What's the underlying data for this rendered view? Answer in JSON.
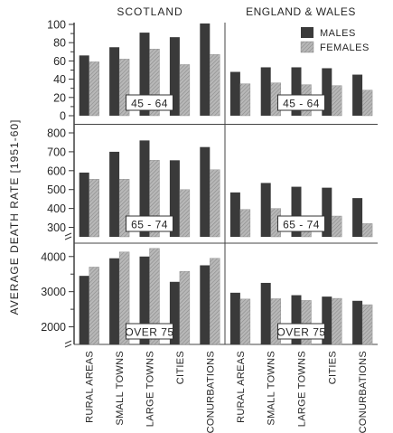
{
  "chart_data": {
    "type": "bar",
    "ylabel": "AVERAGE DEATH RATE [1951-60]",
    "columns": [
      "SCOTLAND",
      "ENGLAND & WALES"
    ],
    "categories": [
      "RURAL AREAS",
      "SMALL TOWNS",
      "LARGE TOWNS",
      "CITIES",
      "CONURBATIONS"
    ],
    "legend": [
      "MALES",
      "FEMALES"
    ],
    "colors": {
      "males": "#3a3a3a",
      "females": "#a9a9a9"
    },
    "rows": [
      {
        "label": "45 - 64",
        "ylim": [
          0,
          100
        ],
        "ticks": [
          0,
          10,
          20,
          30,
          40,
          50,
          60,
          70,
          80,
          90,
          100
        ],
        "tick_labels": [
          "0",
          "",
          "20",
          "",
          "40",
          "",
          "60",
          "",
          "80",
          "",
          "100"
        ],
        "panels": [
          {
            "males": [
              66,
              75,
              91,
              86,
              101
            ],
            "females": [
              59,
              62,
              73,
              56,
              67
            ]
          },
          {
            "males": [
              48,
              53,
              53,
              52,
              45
            ],
            "females": [
              35,
              36,
              34,
              33,
              28
            ]
          }
        ]
      },
      {
        "label": "65 - 74",
        "ylim": [
          250,
          800
        ],
        "ticks": [
          300,
          400,
          500,
          600,
          700,
          800
        ],
        "tick_labels": [
          "300",
          "400",
          "500",
          "600",
          "700",
          "800"
        ],
        "panels": [
          {
            "males": [
              590,
              700,
              760,
              655,
              725
            ],
            "females": [
              555,
              555,
              655,
              500,
              605
            ]
          },
          {
            "males": [
              485,
              535,
              515,
              510,
              455
            ],
            "females": [
              395,
              400,
              355,
              360,
              320
            ]
          }
        ]
      },
      {
        "label": "OVER 75",
        "ylim": [
          1500,
          4200
        ],
        "ticks": [
          2000,
          2500,
          3000,
          3500,
          4000
        ],
        "tick_labels": [
          "2000",
          "",
          "3000",
          "",
          "4000"
        ],
        "panels": [
          {
            "males": [
              3450,
              3950,
              4000,
              3280,
              3750
            ],
            "females": [
              3700,
              4130,
              4230,
              3580,
              3950
            ]
          },
          {
            "males": [
              2970,
              3250,
              2900,
              2860,
              2740
            ],
            "females": [
              2790,
              2800,
              2750,
              2810,
              2630
            ]
          }
        ]
      }
    ]
  }
}
